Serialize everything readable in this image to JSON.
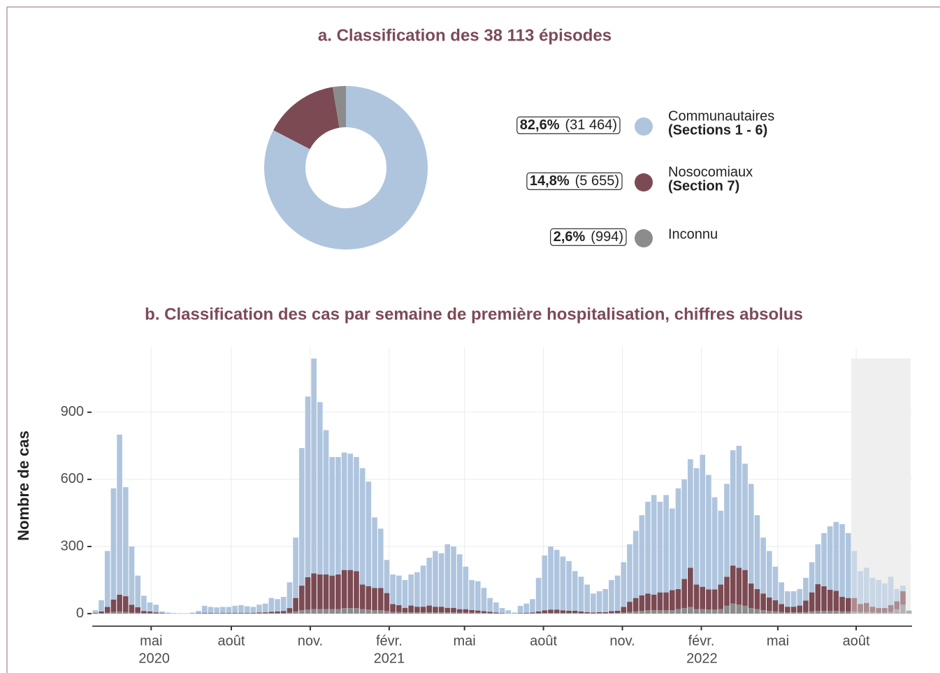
{
  "chart_data": [
    {
      "type": "pie",
      "title": "a. Classification des 38 113 épisodes",
      "categories": [
        "Communautaires",
        "Nosocomiaux",
        "Inconnu"
      ],
      "sublabels": [
        "(Sections 1 -  6)",
        "(Section 7)",
        null
      ],
      "values": [
        82.6,
        14.8,
        2.6
      ],
      "value_labels": [
        "82,6%",
        "14,8%",
        "2,6%"
      ],
      "counts": [
        31464,
        5655,
        994
      ],
      "count_labels": [
        "(31 464)",
        "(5 655)",
        "(994)"
      ],
      "colors": [
        "#afc5de",
        "#7b4a52",
        "#8c8c8c"
      ]
    },
    {
      "type": "stacked_bar",
      "title": "b. Classification des cas par semaine de première hospitalisation, chiffres absolus",
      "y_label": "Nombre de cas",
      "categories": [
        null,
        null,
        null,
        null,
        null,
        null,
        null,
        null,
        null,
        null,
        null,
        null,
        null,
        null,
        null,
        null,
        null,
        null,
        null,
        null,
        null,
        null,
        null,
        null,
        null,
        null,
        null,
        null,
        null,
        null,
        null,
        null,
        null,
        null,
        null,
        null,
        null,
        null,
        null,
        null,
        null,
        null,
        null,
        null,
        null,
        null,
        null,
        null,
        null,
        null,
        null,
        null,
        null,
        null,
        null,
        null,
        null,
        null,
        null,
        null,
        null,
        null,
        null,
        null,
        null,
        null,
        null,
        null,
        null,
        null,
        null,
        null,
        null,
        null,
        null,
        null,
        null,
        null,
        null,
        null,
        null,
        null,
        null,
        null,
        null,
        null,
        null,
        null,
        null,
        null,
        null,
        null,
        null,
        null,
        null,
        null,
        null,
        null,
        null,
        null,
        null,
        null,
        null,
        null,
        null,
        null,
        null,
        null,
        null,
        null,
        null,
        null,
        null,
        null,
        null,
        null,
        null,
        null,
        null,
        null,
        null,
        null,
        null,
        null,
        null,
        null,
        null,
        null,
        null,
        null,
        null,
        null,
        null,
        null,
        null
      ],
      "series": [
        {
          "color": "#8c8c8c",
          "values": [
            1,
            2,
            5,
            8,
            10,
            8,
            5,
            4,
            2,
            2,
            1,
            0,
            0,
            0,
            0,
            0,
            0,
            0,
            1,
            1,
            1,
            1,
            1,
            1,
            1,
            1,
            1,
            1,
            1,
            2,
            2,
            2,
            5,
            10,
            15,
            18,
            20,
            20,
            20,
            20,
            20,
            25,
            25,
            25,
            20,
            18,
            15,
            15,
            12,
            8,
            8,
            6,
            6,
            6,
            6,
            6,
            6,
            6,
            6,
            6,
            5,
            5,
            4,
            4,
            3,
            2,
            1,
            1,
            0,
            0,
            1,
            1,
            1,
            2,
            3,
            3,
            3,
            3,
            3,
            3,
            2,
            2,
            1,
            2,
            2,
            3,
            3,
            5,
            8,
            10,
            12,
            15,
            15,
            15,
            15,
            15,
            20,
            25,
            30,
            20,
            20,
            18,
            18,
            20,
            35,
            45,
            40,
            35,
            25,
            20,
            15,
            12,
            10,
            8,
            6,
            6,
            6,
            8,
            10,
            12,
            12,
            12,
            12,
            10,
            10,
            10,
            8,
            8,
            6,
            5,
            5,
            8,
            20,
            40,
            8
          ]
        },
        {
          "color": "#7b4a52",
          "values": [
            3,
            8,
            25,
            55,
            75,
            70,
            35,
            25,
            10,
            8,
            5,
            2,
            1,
            0,
            0,
            0,
            1,
            2,
            3,
            3,
            2,
            3,
            3,
            3,
            3,
            3,
            3,
            4,
            5,
            6,
            8,
            10,
            20,
            60,
            110,
            145,
            160,
            155,
            155,
            150,
            155,
            170,
            170,
            165,
            110,
            105,
            100,
            100,
            80,
            35,
            30,
            20,
            30,
            25,
            25,
            30,
            25,
            25,
            20,
            20,
            15,
            15,
            12,
            10,
            8,
            6,
            4,
            2,
            1,
            1,
            2,
            3,
            4,
            8,
            12,
            15,
            15,
            12,
            10,
            10,
            8,
            5,
            4,
            5,
            5,
            8,
            10,
            25,
            45,
            60,
            70,
            75,
            70,
            80,
            80,
            90,
            90,
            130,
            175,
            110,
            100,
            90,
            90,
            110,
            130,
            170,
            165,
            160,
            110,
            90,
            75,
            60,
            50,
            35,
            25,
            25,
            30,
            50,
            85,
            120,
            110,
            95,
            90,
            65,
            60,
            60,
            35,
            40,
            25,
            20,
            20,
            30,
            35,
            60,
            3
          ]
        },
        {
          "color": "#afc5de",
          "values": [
            11,
            50,
            250,
            497,
            715,
            487,
            260,
            141,
            68,
            40,
            34,
            8,
            4,
            3,
            2,
            2,
            4,
            10,
            31,
            26,
            25,
            26,
            26,
            31,
            34,
            29,
            26,
            35,
            39,
            62,
            55,
            63,
            115,
            270,
            615,
            807,
            960,
            770,
            645,
            530,
            525,
            525,
            520,
            510,
            520,
            467,
            315,
            265,
            148,
            132,
            132,
            124,
            139,
            154,
            184,
            214,
            249,
            239,
            284,
            274,
            245,
            190,
            134,
            131,
            104,
            62,
            45,
            22,
            14,
            4,
            32,
            41,
            60,
            150,
            245,
            282,
            267,
            240,
            222,
            177,
            155,
            123,
            85,
            93,
            103,
            139,
            157,
            200,
            257,
            300,
            358,
            410,
            445,
            405,
            435,
            365,
            450,
            445,
            485,
            520,
            590,
            512,
            412,
            330,
            415,
            515,
            545,
            475,
            445,
            330,
            250,
            208,
            150,
            97,
            69,
            69,
            74,
            102,
            135,
            178,
            238,
            283,
            308,
            325,
            290,
            210,
            147,
            157,
            129,
            125,
            110,
            127,
            55,
            25,
            4
          ]
        }
      ],
      "highlight": [
        125,
        134
      ],
      "ylim": [
        -56,
        1190
      ],
      "yticks": [
        0,
        300,
        600,
        900
      ],
      "grid": true,
      "xticks": [
        {
          "value": 9.2,
          "label": "mai"
        },
        {
          "value": 22.4,
          "label": "août"
        },
        {
          "value": 35.4,
          "label": "nov."
        },
        {
          "value": 48.4,
          "label": "févr."
        },
        {
          "value": 60.8,
          "label": "mai"
        },
        {
          "value": 73.8,
          "label": "août"
        },
        {
          "value": 86.8,
          "label": "nov."
        },
        {
          "value": 99.8,
          "label": "févr."
        },
        {
          "value": 112.4,
          "label": "mai"
        },
        {
          "value": 125.3,
          "label": "août"
        }
      ],
      "year_ticks": [
        {
          "value": 9.7,
          "label": "2020"
        },
        {
          "value": 48.4,
          "label": "2021"
        },
        {
          "value": 99.9,
          "label": "2022"
        }
      ]
    }
  ]
}
